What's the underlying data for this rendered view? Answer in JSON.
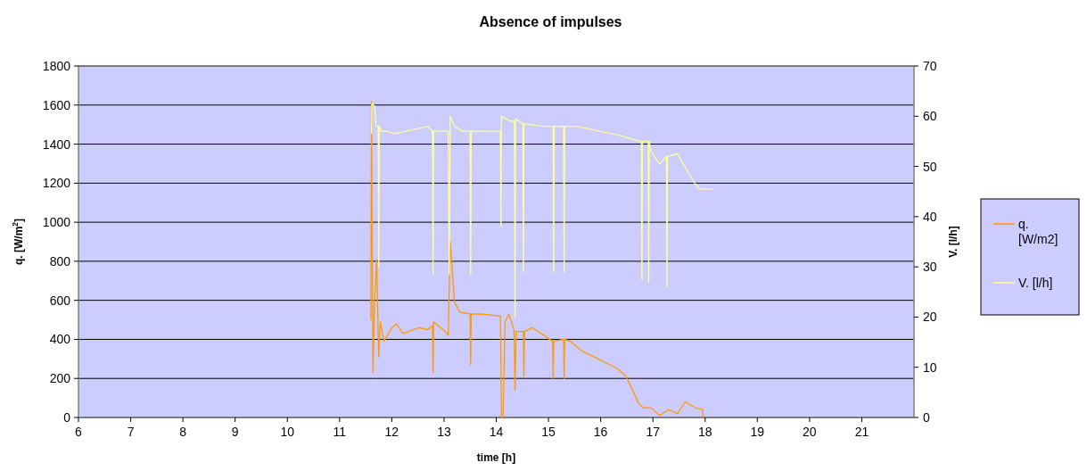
{
  "chart_data": {
    "type": "line",
    "title": "Absence of impulses",
    "xlabel": "time [h]",
    "ylabel": "q. [W/m$^{2}$]",
    "y2label": "V. [l/h]",
    "xlim": [
      6,
      22
    ],
    "xticks": [
      6,
      7,
      8,
      9,
      10,
      11,
      12,
      13,
      14,
      15,
      16,
      17,
      18,
      19,
      20,
      21
    ],
    "ylim": [
      0,
      1800
    ],
    "yticks": [
      0,
      200,
      400,
      600,
      800,
      1000,
      1200,
      1400,
      1600,
      1800
    ],
    "y2lim": [
      0,
      70
    ],
    "y2ticks": [
      0,
      10,
      20,
      30,
      40,
      50,
      60,
      70
    ],
    "grid": "y",
    "legend": "right",
    "marker": "none",
    "line_style": "solid",
    "series": [
      {
        "name": "q. [W/m2]",
        "color": "#ff9900",
        "x": [
          11.6,
          11.61,
          11.62,
          11.64,
          11.67,
          11.71,
          11.75,
          11.78,
          11.85,
          12.0,
          12.09,
          12.21,
          12.52,
          12.69,
          12.78,
          12.79,
          12.8,
          13.03,
          13.08,
          13.1,
          13.12,
          13.2,
          13.3,
          13.5,
          13.51,
          13.52,
          13.71,
          14.05,
          14.08,
          14.1,
          14.13,
          14.17,
          14.24,
          14.34,
          14.36,
          14.38,
          14.45,
          14.52,
          14.53,
          14.54,
          14.69,
          14.86,
          15.08,
          15.09,
          15.1,
          15.29,
          15.3,
          15.31,
          15.42,
          15.64,
          15.88,
          16.1,
          16.32,
          16.49,
          16.61,
          16.73,
          16.82,
          16.96,
          17.13,
          17.3,
          17.47,
          17.62,
          17.81,
          17.95,
          17.96
        ],
        "values": [
          500,
          1620,
          1150,
          230,
          600,
          810,
          310,
          490,
          390,
          460,
          480,
          430,
          460,
          450,
          470,
          230,
          490,
          440,
          420,
          660,
          900,
          590,
          540,
          530,
          270,
          530,
          530,
          520,
          520,
          0,
          0,
          490,
          530,
          450,
          140,
          440,
          440,
          440,
          210,
          440,
          460,
          430,
          390,
          200,
          390,
          400,
          200,
          400,
          390,
          340,
          310,
          280,
          250,
          210,
          140,
          70,
          50,
          50,
          10,
          40,
          20,
          80,
          50,
          40,
          0
        ]
      },
      {
        "name": "V. [l/h]",
        "color": "#ffff99",
        "axis": "y2",
        "x": [
          11.61,
          11.62,
          11.67,
          11.7,
          11.74,
          11.75,
          11.76,
          11.8,
          11.92,
          12.05,
          12.7,
          12.78,
          12.79,
          12.8,
          13.08,
          13.1,
          13.12,
          13.2,
          13.35,
          13.5,
          13.51,
          13.52,
          14.08,
          14.09,
          14.1,
          14.27,
          14.35,
          14.36,
          14.37,
          14.51,
          14.52,
          14.53,
          14.9,
          15.09,
          15.1,
          15.11,
          15.29,
          15.3,
          15.31,
          15.54,
          15.98,
          16.22,
          16.44,
          16.73,
          16.78,
          16.79,
          16.8,
          16.91,
          16.92,
          16.93,
          16.96,
          17.13,
          17.26,
          17.27,
          17.28,
          17.47,
          17.64,
          17.81,
          17.9,
          18.15
        ],
        "values": [
          56.5,
          62.5,
          62,
          58,
          58,
          30,
          58,
          57,
          57,
          56.5,
          58,
          57,
          28.5,
          57,
          57,
          28.5,
          60,
          58,
          57,
          57,
          28.5,
          57,
          57,
          38,
          60,
          59,
          59,
          20,
          59.5,
          58.5,
          29,
          58.5,
          58,
          58,
          29,
          58,
          58,
          29,
          58,
          58,
          57,
          56.5,
          56,
          55,
          55,
          27.5,
          55,
          55,
          27,
          55,
          53,
          50.5,
          52,
          26,
          52,
          52.5,
          49.5,
          46.5,
          45.5,
          45.5
        ]
      }
    ]
  }
}
